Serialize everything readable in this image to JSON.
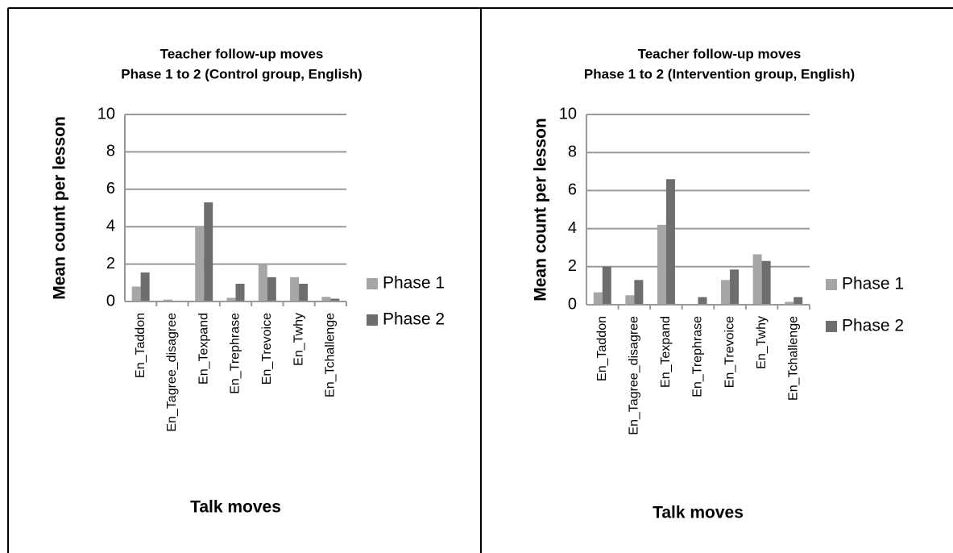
{
  "chart_data": [
    {
      "type": "bar",
      "title": "Teacher follow-up moves",
      "subtitle": "Phase 1 to 2 (Control group, English)",
      "x_label": "Talk moves",
      "y_label": "Mean count per lesson",
      "categories": [
        "En_Taddon",
        "En_Tagree_disagree",
        "En_Texpand",
        "En_Trephrase",
        "En_Trevoice",
        "En_Twhy",
        "En_Tchallenge"
      ],
      "series": [
        {
          "name": "Phase 1",
          "color": "#a6a6a6",
          "values": [
            0.8,
            0.1,
            4.0,
            0.2,
            2.0,
            1.3,
            0.25
          ]
        },
        {
          "name": "Phase 2",
          "color": "#6e6e6e",
          "values": [
            1.55,
            0,
            5.3,
            0.95,
            1.3,
            0.95,
            0.15
          ]
        }
      ],
      "ylim": [
        0,
        10
      ],
      "yticks": [
        0,
        2,
        4,
        6,
        8,
        10
      ],
      "grid": true,
      "legend": "right"
    },
    {
      "type": "bar",
      "title": "Teacher follow-up moves",
      "subtitle": "Phase 1 to 2 (Intervention group, English)",
      "x_label": "Talk moves",
      "y_label": "Mean count per lesson",
      "categories": [
        "En_Taddon",
        "En_Tagree_disagree",
        "En_Texpand",
        "En_Trephrase",
        "En_Trevoice",
        "En_Twhy",
        "En_Tchallenge"
      ],
      "series": [
        {
          "name": "Phase 1",
          "color": "#a6a6a6",
          "values": [
            0.65,
            0.5,
            4.2,
            0,
            1.3,
            2.65,
            0.15
          ]
        },
        {
          "name": "Phase 2",
          "color": "#6e6e6e",
          "values": [
            2.0,
            1.3,
            6.6,
            0.4,
            1.85,
            2.3,
            0.4
          ]
        }
      ],
      "ylim": [
        0,
        10
      ],
      "yticks": [
        0,
        2,
        4,
        6,
        8,
        10
      ],
      "grid": true,
      "legend": "right"
    }
  ]
}
